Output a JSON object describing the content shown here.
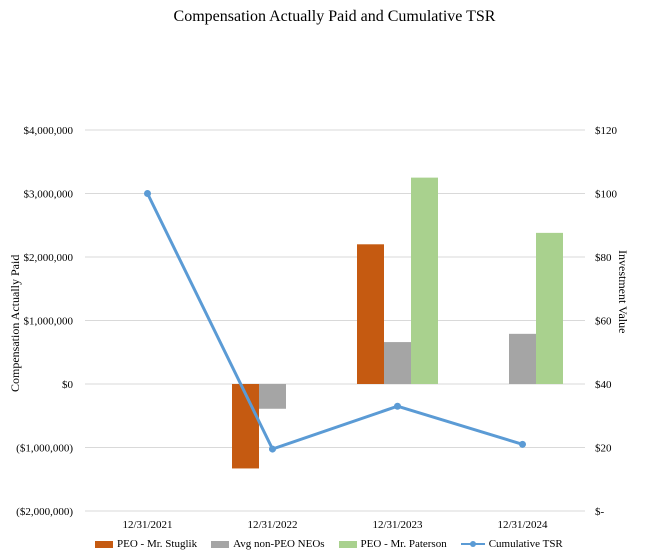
{
  "chart_data": {
    "type": "bar+line",
    "title": "Compensation Actually Paid and Cumulative TSR",
    "ylabel": "Compensation Actually Paid",
    "y2label": "Investment Value",
    "categories": [
      "12/31/2021",
      "12/31/2022",
      "12/31/2023",
      "12/31/2024"
    ],
    "ylim": [
      -2000000,
      4000000
    ],
    "y2lim": [
      0,
      120
    ],
    "yticks": [
      "($2,000,000)",
      "($1,000,000)",
      "$0",
      "$1,000,000",
      "$2,000,000",
      "$3,000,000",
      "$4,000,000"
    ],
    "y2ticks": [
      "$-",
      "$20",
      "$40",
      "$60",
      "$80",
      "$100",
      "$120"
    ],
    "series": [
      {
        "name": "PEO - Mr. Stuglik",
        "type": "bar",
        "color": "#c55a11",
        "values": [
          null,
          -1330000,
          2200000,
          null
        ]
      },
      {
        "name": "Avg non-PEO NEOs",
        "type": "bar",
        "color": "#a5a5a5",
        "values": [
          null,
          -390000,
          660000,
          790000
        ]
      },
      {
        "name": "PEO - Mr. Paterson",
        "type": "bar",
        "color": "#a9d18e",
        "values": [
          null,
          null,
          3250000,
          2380000
        ]
      },
      {
        "name": "Cumulative TSR",
        "type": "line",
        "axis": "right",
        "color": "#5b9bd5",
        "values": [
          100,
          19.5,
          33,
          21
        ]
      }
    ],
    "legend_position": "bottom"
  }
}
